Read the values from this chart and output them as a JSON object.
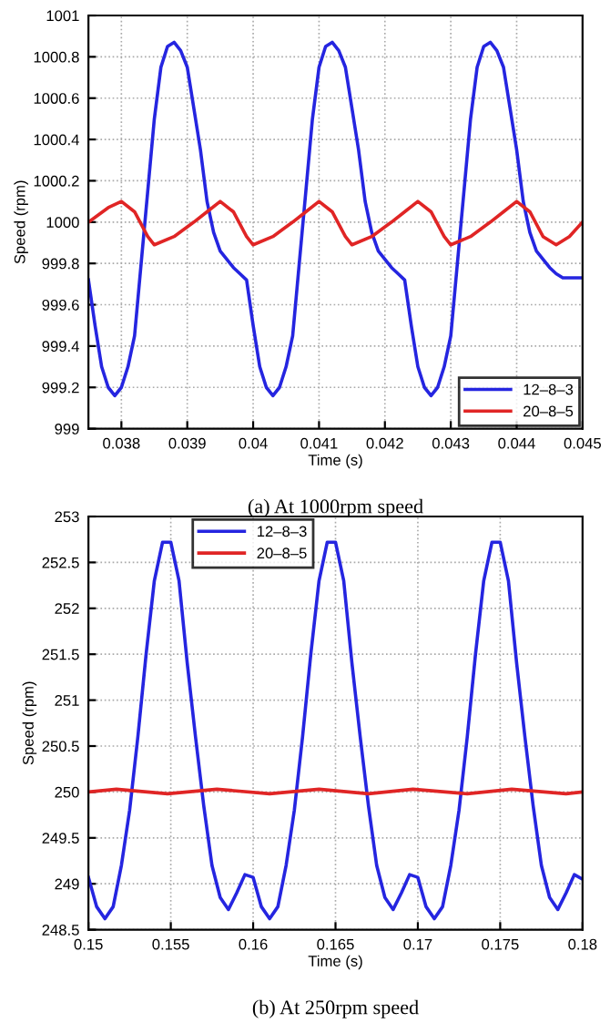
{
  "chart_data": [
    {
      "type": "line",
      "xlabel": "Time (s)",
      "ylabel": "Speed (rpm)",
      "annotations": [
        "(a) At 1000rpm speed"
      ],
      "xlim": [
        0.0375,
        0.045
      ],
      "xticks": [
        0.038,
        0.039,
        0.04,
        0.041,
        0.042,
        0.043,
        0.044,
        0.045
      ],
      "ylim": [
        999,
        1001
      ],
      "yticks": [
        999,
        999.2,
        999.4,
        999.6,
        999.8,
        1000,
        1000.2,
        1000.4,
        1000.6,
        1000.8,
        1001
      ],
      "grid": true,
      "legend": "bottom right",
      "line_style": "solid",
      "marker": "none",
      "series": [
        {
          "name": "12–8–3",
          "color": "#2525e0",
          "x": [
            0.0375,
            0.0376,
            0.0377,
            0.0378,
            0.0379,
            0.038,
            0.0381,
            0.0382,
            0.0383,
            0.0384,
            0.0385,
            0.0386,
            0.0387,
            0.0388,
            0.0389,
            0.039,
            0.0391,
            0.0392,
            0.0393,
            0.0394,
            0.0395,
            0.0396,
            0.0397,
            0.0398,
            0.0399,
            0.04,
            0.0401,
            0.0402,
            0.0403,
            0.0404,
            0.0405,
            0.0406,
            0.0407,
            0.0408,
            0.0409,
            0.041,
            0.0411,
            0.0412,
            0.0413,
            0.0414,
            0.0415,
            0.0416,
            0.0417,
            0.0418,
            0.0419,
            0.042,
            0.0421,
            0.0422,
            0.0423,
            0.0424,
            0.0425,
            0.0426,
            0.0427,
            0.0428,
            0.0429,
            0.043,
            0.0431,
            0.0432,
            0.0433,
            0.0434,
            0.0435,
            0.0436,
            0.0437,
            0.0438,
            0.0439,
            0.044,
            0.0441,
            0.0442,
            0.0443,
            0.0444,
            0.0445,
            0.0446,
            0.0447,
            0.0448,
            0.0449,
            0.045
          ],
          "values": [
            999.72,
            999.5,
            999.3,
            999.2,
            999.16,
            999.2,
            999.3,
            999.45,
            999.8,
            1000.15,
            1000.5,
            1000.75,
            1000.85,
            1000.87,
            1000.83,
            1000.75,
            1000.55,
            1000.35,
            1000.1,
            999.95,
            999.86,
            999.82,
            999.78,
            999.75,
            999.72,
            999.5,
            999.3,
            999.2,
            999.16,
            999.2,
            999.3,
            999.45,
            999.8,
            1000.15,
            1000.5,
            1000.75,
            1000.85,
            1000.87,
            1000.83,
            1000.75,
            1000.55,
            1000.35,
            1000.1,
            999.95,
            999.86,
            999.82,
            999.78,
            999.75,
            999.72,
            999.5,
            999.3,
            999.2,
            999.16,
            999.2,
            999.3,
            999.45,
            999.8,
            1000.15,
            1000.5,
            1000.75,
            1000.85,
            1000.87,
            1000.83,
            1000.75,
            1000.55,
            1000.35,
            1000.1,
            999.95,
            999.86,
            999.82,
            999.78,
            999.75,
            999.73,
            999.73,
            999.73,
            999.73
          ]
        },
        {
          "name": "20–8–5",
          "color": "#e02525",
          "x": [
            0.0375,
            0.0378,
            0.038,
            0.0382,
            0.0384,
            0.0385,
            0.0388,
            0.0391,
            0.0393,
            0.0395,
            0.0397,
            0.0399,
            0.04,
            0.0403,
            0.0406,
            0.0408,
            0.041,
            0.0412,
            0.0414,
            0.0415,
            0.0418,
            0.0421,
            0.0423,
            0.0425,
            0.0427,
            0.0429,
            0.043,
            0.0433,
            0.0436,
            0.0438,
            0.044,
            0.0442,
            0.0444,
            0.0446,
            0.0448,
            0.045
          ],
          "values": [
            1000.0,
            1000.07,
            1000.1,
            1000.05,
            999.93,
            999.89,
            999.93,
            1000.0,
            1000.05,
            1000.1,
            1000.05,
            999.93,
            999.89,
            999.93,
            1000.0,
            1000.05,
            1000.1,
            1000.05,
            999.93,
            999.89,
            999.93,
            1000.0,
            1000.05,
            1000.1,
            1000.05,
            999.93,
            999.89,
            999.93,
            1000.0,
            1000.05,
            1000.1,
            1000.05,
            999.93,
            999.89,
            999.93,
            1000.0
          ]
        }
      ]
    },
    {
      "type": "line",
      "xlabel": "Time (s)",
      "ylabel": "Speed (rpm)",
      "annotations": [
        "(b) At 250rpm speed"
      ],
      "xlim": [
        0.15,
        0.18
      ],
      "xticks": [
        0.15,
        0.155,
        0.16,
        0.165,
        0.17,
        0.175,
        0.18
      ],
      "ylim": [
        248.5,
        253
      ],
      "yticks": [
        248.5,
        249,
        249.5,
        250,
        250.5,
        251,
        251.5,
        252,
        252.5,
        253
      ],
      "grid": true,
      "legend": "top",
      "line_style": "solid",
      "marker": "none",
      "series": [
        {
          "name": "12–8–3",
          "color": "#2525e0",
          "x": [
            0.15,
            0.1505,
            0.151,
            0.1515,
            0.152,
            0.1525,
            0.153,
            0.1535,
            0.154,
            0.1545,
            0.155,
            0.1555,
            0.156,
            0.1565,
            0.157,
            0.1575,
            0.158,
            0.1585,
            0.159,
            0.1595,
            0.16,
            0.1605,
            0.161,
            0.1615,
            0.162,
            0.1625,
            0.163,
            0.1635,
            0.164,
            0.1645,
            0.165,
            0.1655,
            0.166,
            0.1665,
            0.167,
            0.1675,
            0.168,
            0.1685,
            0.169,
            0.1695,
            0.17,
            0.1705,
            0.171,
            0.1715,
            0.172,
            0.1725,
            0.173,
            0.1735,
            0.174,
            0.1745,
            0.175,
            0.1755,
            0.176,
            0.1765,
            0.177,
            0.1775,
            0.178,
            0.1785,
            0.179,
            0.1795,
            0.18
          ],
          "values": [
            249.07,
            248.75,
            248.62,
            248.75,
            249.2,
            249.8,
            250.6,
            251.5,
            252.3,
            252.72,
            252.72,
            252.3,
            251.4,
            250.6,
            249.85,
            249.2,
            248.85,
            248.72,
            248.9,
            249.1,
            249.07,
            248.75,
            248.62,
            248.75,
            249.2,
            249.8,
            250.6,
            251.5,
            252.3,
            252.72,
            252.72,
            252.3,
            251.4,
            250.6,
            249.85,
            249.2,
            248.85,
            248.72,
            248.9,
            249.1,
            249.07,
            248.75,
            248.62,
            248.75,
            249.2,
            249.8,
            250.6,
            251.5,
            252.3,
            252.72,
            252.72,
            252.3,
            251.4,
            250.6,
            249.85,
            249.2,
            248.85,
            248.72,
            248.9,
            249.1,
            249.05
          ]
        },
        {
          "name": "20–8–5",
          "color": "#e02525",
          "x": [
            0.15,
            0.1517,
            0.1548,
            0.1578,
            0.161,
            0.164,
            0.167,
            0.1697,
            0.173,
            0.1757,
            0.179,
            0.18
          ],
          "values": [
            250.0,
            250.03,
            249.98,
            250.03,
            249.98,
            250.03,
            249.98,
            250.03,
            249.98,
            250.03,
            249.98,
            250.0
          ]
        }
      ]
    }
  ]
}
